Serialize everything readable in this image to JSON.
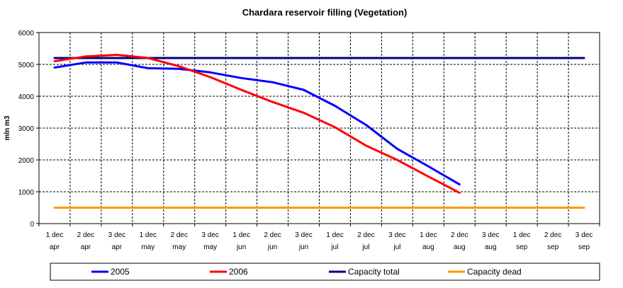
{
  "chart_data": {
    "type": "line",
    "title": "Chardara reservoir filling  (Vegetation)",
    "xlabel": "",
    "ylabel": "mln m3",
    "ylim": [
      0,
      6000
    ],
    "yticks": [
      0,
      1000,
      2000,
      3000,
      4000,
      5000,
      6000
    ],
    "grid": true,
    "legend_position": "bottom",
    "categories": [
      [
        "1 dec",
        "apr"
      ],
      [
        "2 dec",
        "apr"
      ],
      [
        "3 dec",
        "apr"
      ],
      [
        "1 dec",
        "may"
      ],
      [
        "2 dec",
        "may"
      ],
      [
        "3 dec",
        "may"
      ],
      [
        "1 dec",
        "jun"
      ],
      [
        "2 dec",
        "jun"
      ],
      [
        "3 dec",
        "jun"
      ],
      [
        "1 dec",
        "jul"
      ],
      [
        "2 dec",
        "jul"
      ],
      [
        "3 dec",
        "jul"
      ],
      [
        "1 dec",
        "aug"
      ],
      [
        "2 dec",
        "aug"
      ],
      [
        "3 dec",
        "aug"
      ],
      [
        "1 dec",
        "sep"
      ],
      [
        "2 dec",
        "sep"
      ],
      [
        "3 dec",
        "sep"
      ]
    ],
    "series": [
      {
        "name": "2005",
        "color": "#0000ff",
        "values": [
          4900,
          5060,
          5060,
          4880,
          4860,
          4750,
          4570,
          4440,
          4200,
          3700,
          3100,
          2350,
          1800,
          1230,
          null,
          null,
          null,
          null
        ]
      },
      {
        "name": "2006",
        "color": "#ff0000",
        "values": [
          5100,
          5250,
          5300,
          5200,
          4940,
          4600,
          4200,
          3820,
          3480,
          3030,
          2450,
          2000,
          1480,
          970,
          null,
          null,
          null,
          null
        ]
      },
      {
        "name": "Capacity total",
        "color": "#000080",
        "values": [
          5200,
          5200,
          5200,
          5200,
          5200,
          5200,
          5200,
          5200,
          5200,
          5200,
          5200,
          5200,
          5200,
          5200,
          5200,
          5200,
          5200,
          5200
        ]
      },
      {
        "name": "Capacity dead",
        "color": "#ff9900",
        "values": [
          500,
          500,
          500,
          500,
          500,
          500,
          500,
          500,
          500,
          500,
          500,
          500,
          500,
          500,
          500,
          500,
          500,
          500
        ]
      }
    ]
  }
}
